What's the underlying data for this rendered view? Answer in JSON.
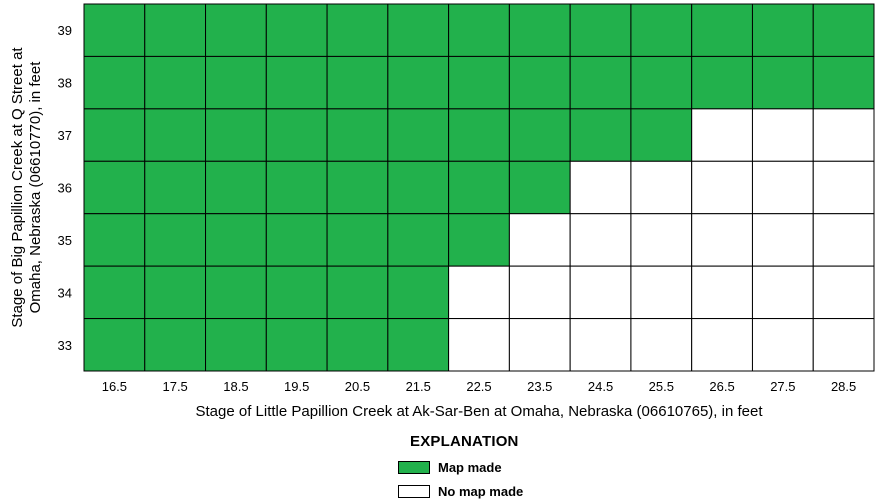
{
  "chart_data": {
    "type": "heatmap",
    "xlabel": "Stage of Little Papillion Creek at Ak-Sar-Ben at Omaha, Nebraska (06610765), in feet",
    "ylabel_lines": [
      "Stage of Big Papillion Creek at Q Street at",
      "Omaha, Nebraska (06610770), in feet"
    ],
    "x": [
      "16.5",
      "17.5",
      "18.5",
      "19.5",
      "20.5",
      "21.5",
      "22.5",
      "23.5",
      "24.5",
      "25.5",
      "26.5",
      "27.5",
      "28.5"
    ],
    "y": [
      "39",
      "38",
      "37",
      "36",
      "35",
      "34",
      "33"
    ],
    "cells": [
      [
        1,
        1,
        1,
        1,
        1,
        1,
        1,
        1,
        1,
        1,
        1,
        1,
        1
      ],
      [
        1,
        1,
        1,
        1,
        1,
        1,
        1,
        1,
        1,
        1,
        1,
        1,
        1
      ],
      [
        1,
        1,
        1,
        1,
        1,
        1,
        1,
        1,
        1,
        1,
        0,
        0,
        0
      ],
      [
        1,
        1,
        1,
        1,
        1,
        1,
        1,
        1,
        0,
        0,
        0,
        0,
        0
      ],
      [
        1,
        1,
        1,
        1,
        1,
        1,
        1,
        0,
        0,
        0,
        0,
        0,
        0
      ],
      [
        1,
        1,
        1,
        1,
        1,
        1,
        0,
        0,
        0,
        0,
        0,
        0,
        0
      ],
      [
        1,
        1,
        1,
        1,
        1,
        1,
        0,
        0,
        0,
        0,
        0,
        0,
        0
      ]
    ],
    "colors": {
      "made": "#22b14c",
      "not_made": "#ffffff",
      "grid": "#000000"
    }
  },
  "legend": {
    "title": "EXPLANATION",
    "items": [
      {
        "label": "Map made",
        "color": "#22b14c"
      },
      {
        "label": "No map made",
        "color": "#ffffff"
      }
    ]
  }
}
